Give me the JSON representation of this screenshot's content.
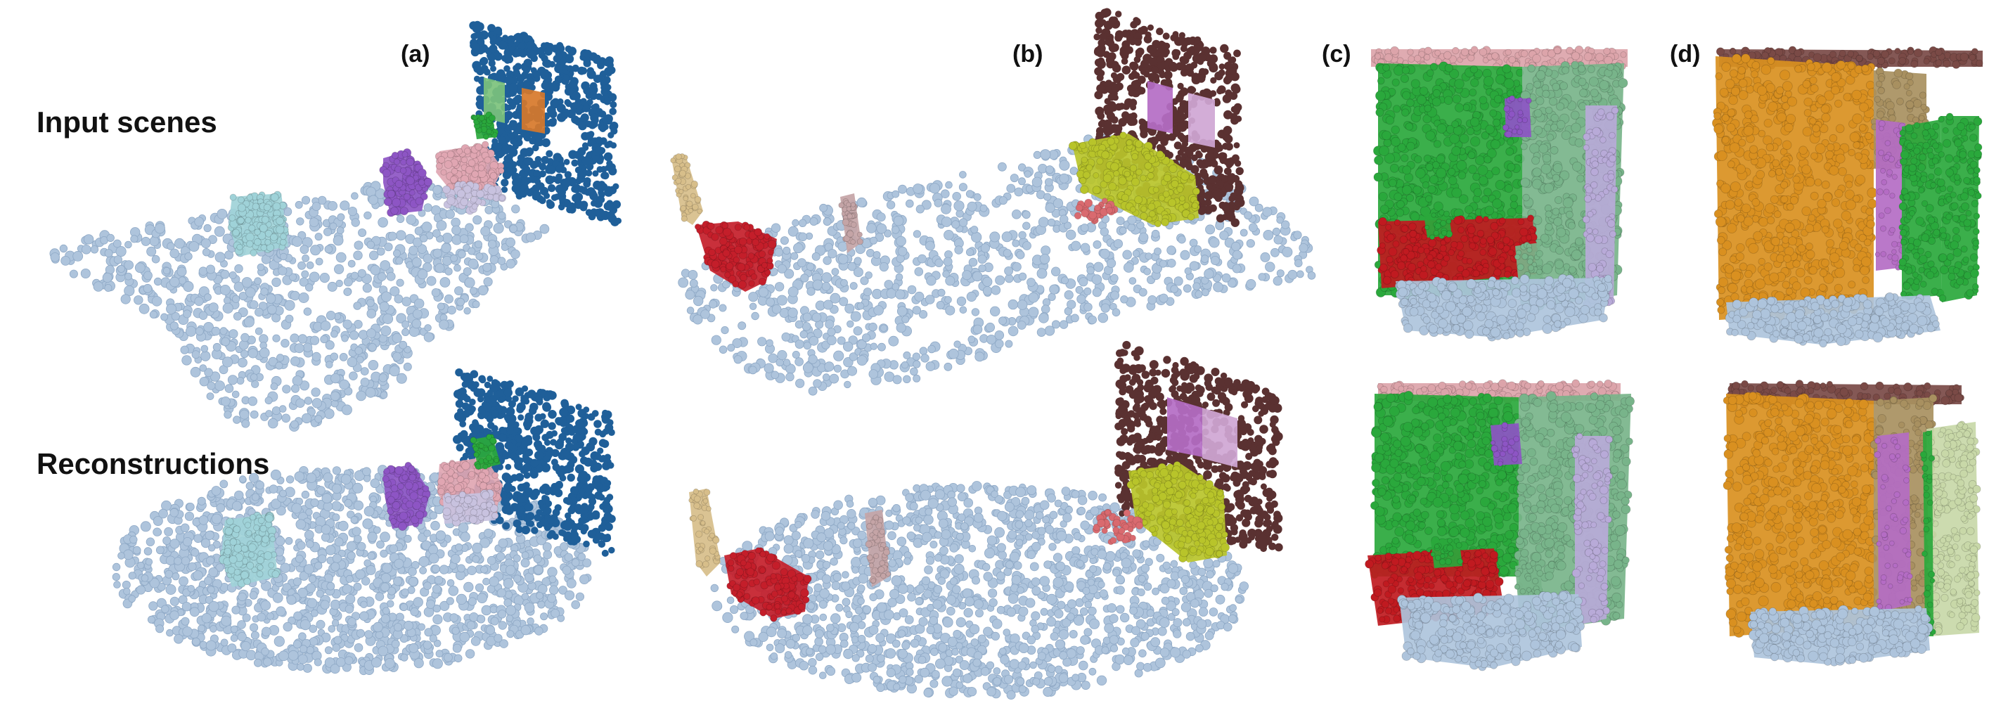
{
  "rows": {
    "input": "Input scenes",
    "recon": "Reconstructions"
  },
  "panels": [
    "(a)",
    "(b)",
    "(c)",
    "(d)"
  ],
  "colors": {
    "floor": "#aec4dc",
    "floor_edge": "#8fa9c6",
    "wall_blue": "#1f5f99",
    "wall_brown": "#5a3131",
    "chair_cyan": "#9fd2d8",
    "chair_purple": "#8d55c4",
    "bed_pink": "#e0a6b2",
    "table_lavender": "#c8c2df",
    "green": "#2aa83c",
    "light_green": "#78b48a",
    "picture_green": "#7cc27c",
    "picture_orange": "#d7782a",
    "sofa_yellow": "#b8c42a",
    "chair_red": "#c41e2a",
    "shelf_tan": "#d7be8a",
    "cabinet_mauve": "#c4a4a6",
    "rug_salmon": "#d96a6f",
    "picture_violet": "#b46cc4",
    "picture_lilac": "#cfa6d4",
    "orange_wall": "#d99020",
    "cabinet_khaki": "#a89060",
    "door_sage": "#c8d8a8",
    "ceiling_pink": "#dca4aa",
    "ceiling_brown": "#7a4a46",
    "red_sofa": "#c01a20",
    "lilac_door": "#b8aad8"
  }
}
